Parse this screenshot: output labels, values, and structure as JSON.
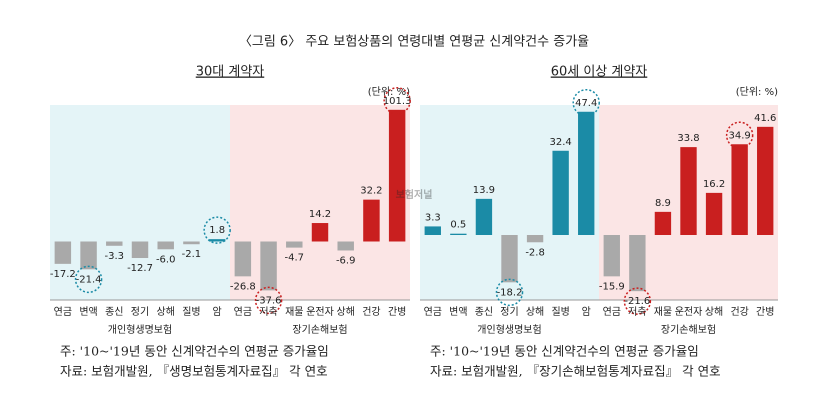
{
  "title": "〈그림 6〉 주요 보험상품의 연령대별 연평균 신계약건수 증가율",
  "watermark": "보험저널",
  "chart_data": [
    {
      "type": "bar",
      "subtitle": "30대 계약자",
      "unit": "(단위: %)",
      "categories": [
        "연금",
        "변액",
        "종신",
        "정기",
        "상해",
        "질병",
        "암",
        "연금",
        "저축",
        "재물",
        "운전자",
        "상해",
        "건강",
        "간병"
      ],
      "values": [
        -17.2,
        -21.4,
        -3.3,
        -12.7,
        -6.0,
        -2.1,
        1.8,
        -26.8,
        -37.6,
        -4.7,
        14.2,
        -6.9,
        32.2,
        101.3
      ],
      "value_labels": [
        "-17.2",
        "-21.4",
        "-3.3",
        "-12.7",
        "-6.0",
        "-2.1",
        "1.8",
        "-26.8",
        "-37.6",
        "-4.7",
        "14.2",
        "-6.9",
        "32.2",
        "101.3"
      ],
      "groups": [
        "개인형생명보험",
        "장기손해보험"
      ],
      "ylim": [
        -45,
        105
      ],
      "highlight": [
        1,
        6,
        8,
        13
      ],
      "colors": {
        "negative": "#a9a9a9",
        "life": "#1b8ba6",
        "nonlife": "#c91f1f",
        "life_bg": "#e4f4f7",
        "nonlife_bg": "#fbe5e5"
      },
      "notes": [
        "주: '10~'19년 동안 신계약건수의 연평균 증가율임",
        "자료: 보험개발원, 『생명보험통계자료집』 각 연호"
      ]
    },
    {
      "type": "bar",
      "subtitle": "60세 이상 계약자",
      "unit": "(단위: %)",
      "categories": [
        "연금",
        "변액",
        "종신",
        "정기",
        "상해",
        "질병",
        "암",
        "연금",
        "저축",
        "재물",
        "운전자",
        "상해",
        "건강",
        "간병"
      ],
      "values": [
        3.3,
        0.5,
        13.9,
        -18.2,
        -2.8,
        32.4,
        47.4,
        -15.9,
        -21.6,
        8.9,
        33.8,
        16.2,
        34.9,
        41.6
      ],
      "value_labels": [
        "3.3",
        "0.5",
        "13.9",
        "-18.2",
        "-2.8",
        "32.4",
        "47.4",
        "-15.9",
        "-21.6",
        "8.9",
        "33.8",
        "16.2",
        "34.9",
        "41.6"
      ],
      "groups": [
        "개인형생명보험",
        "장기손해보험"
      ],
      "ylim": [
        -25,
        50
      ],
      "highlight": [
        3,
        6,
        8,
        12
      ],
      "colors": {
        "negative": "#a9a9a9",
        "life": "#1b8ba6",
        "nonlife": "#c91f1f",
        "life_bg": "#e4f4f7",
        "nonlife_bg": "#fbe5e5"
      },
      "notes": [
        "주: '10~'19년 동안 신계약건수의 연평균 증가율임",
        "자료: 보험개발원, 『장기손해보험통계자료집』 각 연호"
      ]
    }
  ]
}
